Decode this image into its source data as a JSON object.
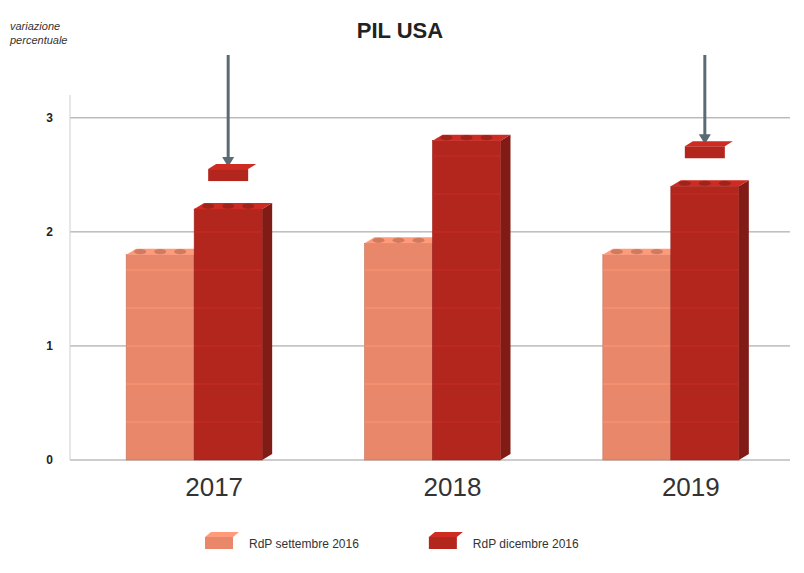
{
  "chart_data": {
    "type": "bar",
    "title": "PIL USA",
    "y_label": "variazione percentuale",
    "categories": [
      "2017",
      "2018",
      "2019"
    ],
    "series": [
      {
        "name": "RdP settembre 2016",
        "color": "#e8876a",
        "values": [
          1.8,
          1.9,
          1.8
        ]
      },
      {
        "name": "RdP dicembre 2016",
        "color": "#b3261e",
        "values": [
          2.2,
          2.8,
          2.4
        ]
      }
    ],
    "ylim": [
      0,
      3.2
    ],
    "yticks": [
      0,
      1,
      2,
      3
    ],
    "grid": true,
    "legend": "bottom"
  }
}
